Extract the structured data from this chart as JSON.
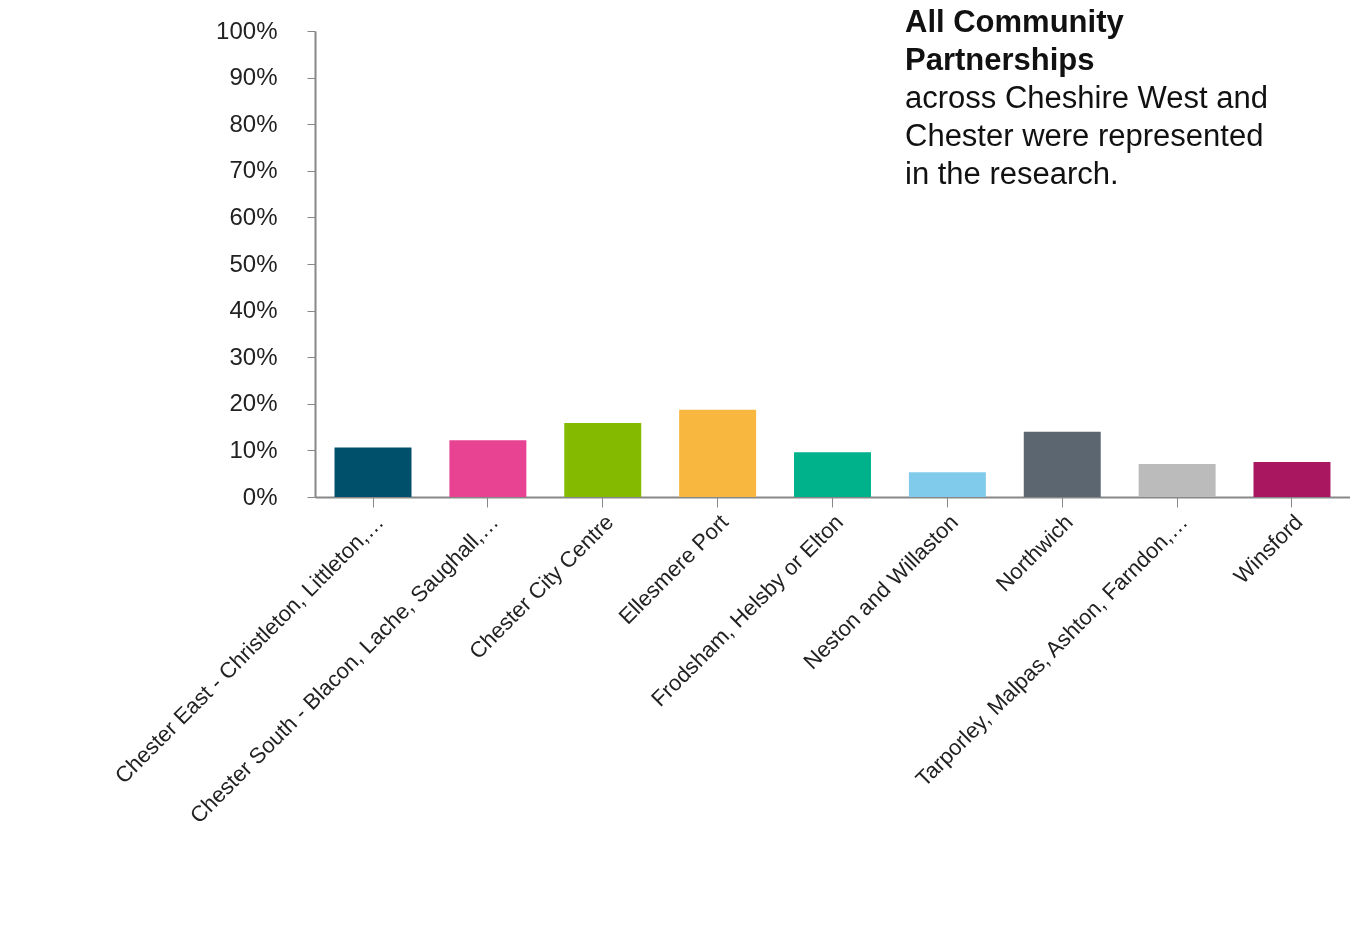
{
  "chart_data": {
    "type": "bar",
    "categories": [
      "Chester East  - Christleton, Littleton,…",
      "Chester South - Blacon, Lache, Saughall,…",
      "Chester City Centre",
      "Ellesmere Port",
      "Frodsham, Helsby or Elton",
      "Neston and Willaston",
      "Northwich",
      "Tarporley, Malpas, Ashton, Farndon,…",
      "Winsford"
    ],
    "values": [
      10.6,
      12.2,
      15.9,
      18.7,
      9.6,
      5.3,
      14.0,
      7.1,
      7.5
    ],
    "colors": [
      "#004f6b",
      "#e84393",
      "#84bb00",
      "#f8b73e",
      "#00b28c",
      "#80cbeb",
      "#5b6670",
      "#bbbbbb",
      "#a81760"
    ],
    "ylim": [
      0,
      100
    ],
    "yticks": [
      {
        "value": 0,
        "label": "0%"
      },
      {
        "value": 10,
        "label": "10%"
      },
      {
        "value": 20,
        "label": "20%"
      },
      {
        "value": 30,
        "label": "30%"
      },
      {
        "value": 40,
        "label": "40%"
      },
      {
        "value": 50,
        "label": "50%"
      },
      {
        "value": 60,
        "label": "60%"
      },
      {
        "value": 70,
        "label": "70%"
      },
      {
        "value": 80,
        "label": "80%"
      },
      {
        "value": 90,
        "label": "90%"
      },
      {
        "value": 100,
        "label": "100%"
      }
    ],
    "grid": false,
    "annotations": [
      "All Community Partnerships",
      "across Cheshire West and Chester were represented in the research."
    ]
  }
}
